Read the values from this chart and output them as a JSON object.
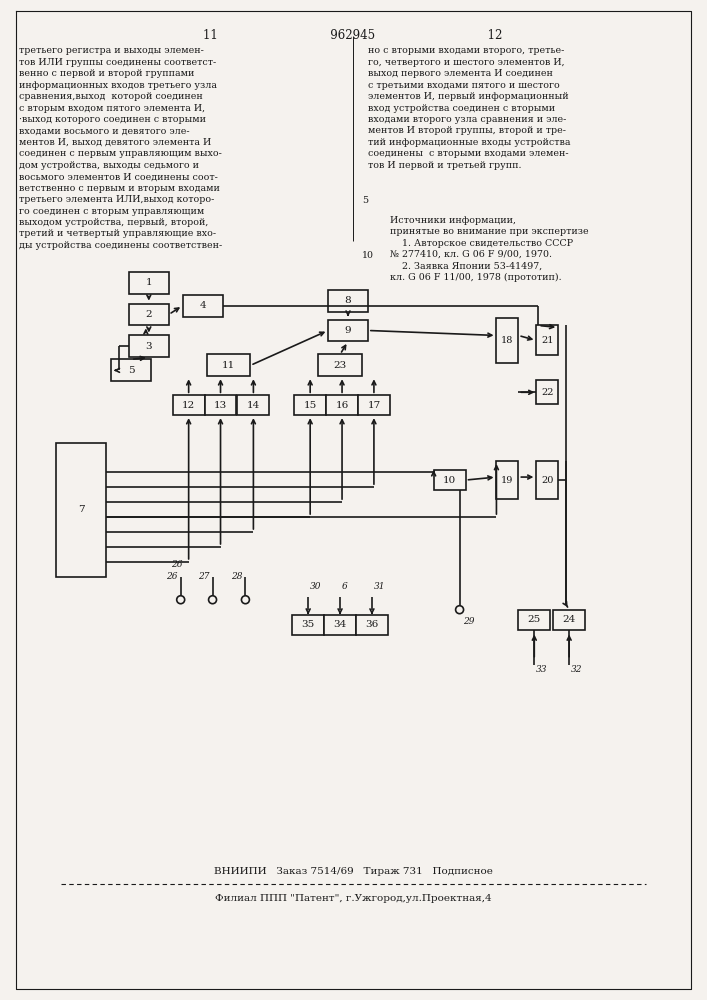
{
  "page_width": 7.07,
  "page_height": 10.0,
  "bg_color": "#f5f2ee",
  "line_color": "#1a1a1a",
  "header": "11                              962945                              12",
  "left_col": "третьего регистра и выходы элемен-\nтов ИЛИ группы соединены соответст-\nвенно с первой и второй группами\nинформационных входов третьего узла\nсравнения,выход  которой соединен\nс вторым входом пятого элемента И,\n·выход которого соединен с вторыми\nвходами восьмого и девятого эле-\nментов И, выход девятого элемента И\nсоединен с первым управляющим выхо-\nдом устройства, выходы седьмого и\nвосьмого элементов И соединены соот-\nветственно с первым и вторым входами\nтретьего элемента ИЛИ,выход которо-\nго соединен с вторым управляющим\nвыходом устройства, первый, второй,\nтретий и четвертый управляющие вхо-\nды устройства соединены соответствен-",
  "right_col": "но с вторыми входами второго, третье-\nго, четвертого и шестого элементов И,\nвыход первого элемента И соединен\nс третьими входами пятого и шестого\nэлементов И, первый информационный\nвход устройства соединен с вторыми\nвходами второго узла сравнения и эле-\nментов И второй группы, второй и тре-\nтий информационные входы устройства\nсоединены  с вторыми входами элемен-\nтов И первой и третьей групп.",
  "sources": "Источники информации,\nпринятые во внимание при экспертизе\n    1. Авторское свидетельство СССР\n№ 277410, кл. G 06 F 9/00, 1970.\n    2. Заявка Японии 53-41497,\nкл. G 06 F 11/00, 1978 (прототип).",
  "footer1": "ВНИИПИ   Заказ 7514/69   Тираж 731   Подписное",
  "footer2": "Филиал ППП \"Патент\", г.Ужгород,ул.Проектная,4",
  "col_line_num": "5"
}
